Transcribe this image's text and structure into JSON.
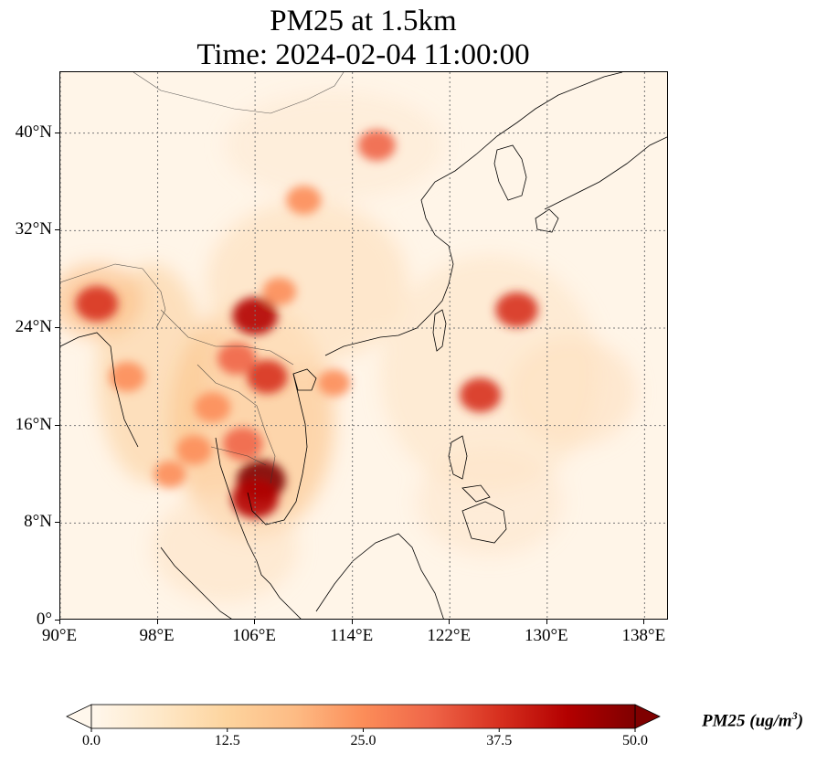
{
  "title": {
    "line1": "PM25 at 1.5km",
    "line2": "Time: 2024-02-04 11:00:00"
  },
  "map": {
    "projection": "PlateCarree",
    "extent": {
      "lon": [
        90,
        140
      ],
      "lat": [
        0,
        45
      ]
    },
    "gridlines": "dotted",
    "field": "PM25",
    "lon_ticks": [
      {
        "value": 90,
        "label": "90°E"
      },
      {
        "value": 98,
        "label": "98°E"
      },
      {
        "value": 106,
        "label": "106°E"
      },
      {
        "value": 114,
        "label": "114°E"
      },
      {
        "value": 122,
        "label": "122°E"
      },
      {
        "value": 130,
        "label": "130°E"
      },
      {
        "value": 138,
        "label": "138°E"
      }
    ],
    "lat_ticks": [
      {
        "value": 0,
        "label": "0°"
      },
      {
        "value": 8,
        "label": "8°N"
      },
      {
        "value": 16,
        "label": "16°N"
      },
      {
        "value": 24,
        "label": "24°N"
      },
      {
        "value": 32,
        "label": "32°N"
      },
      {
        "value": 40,
        "label": "40°N"
      }
    ],
    "hotspots": [
      {
        "lon": 106.5,
        "lat": 11.5,
        "level": 48
      },
      {
        "lon": 106.0,
        "lat": 10.0,
        "level": 45
      },
      {
        "lon": 106.0,
        "lat": 25.0,
        "level": 42
      },
      {
        "lon": 107.0,
        "lat": 20.0,
        "level": 35
      },
      {
        "lon": 105.0,
        "lat": 14.5,
        "level": 34
      },
      {
        "lon": 104.5,
        "lat": 21.5,
        "level": 32
      },
      {
        "lon": 102.5,
        "lat": 17.5,
        "level": 28
      },
      {
        "lon": 101.0,
        "lat": 14.0,
        "level": 27
      },
      {
        "lon": 93.0,
        "lat": 26.0,
        "level": 38
      },
      {
        "lon": 95.5,
        "lat": 20.0,
        "level": 28
      },
      {
        "lon": 124.5,
        "lat": 18.5,
        "level": 36
      },
      {
        "lon": 127.5,
        "lat": 25.5,
        "level": 38
      },
      {
        "lon": 116.0,
        "lat": 39.0,
        "level": 30
      },
      {
        "lon": 110.0,
        "lat": 34.5,
        "level": 26
      },
      {
        "lon": 108.0,
        "lat": 27.0,
        "level": 24
      },
      {
        "lon": 112.5,
        "lat": 19.5,
        "level": 22
      },
      {
        "lon": 99.0,
        "lat": 12.0,
        "level": 22
      }
    ]
  },
  "colorbar": {
    "cmap": "OrRd",
    "vmin": 0,
    "vmax": 50,
    "extend": "both",
    "tick_labels": [
      "0.0",
      "12.5",
      "25.0",
      "37.5",
      "50.0"
    ],
    "tick_values": [
      0,
      12.5,
      25,
      37.5,
      50
    ],
    "label_text": "PM25 (ug/m",
    "label_exponent": "3",
    "label_close": ")",
    "colors": [
      "#fff7ec",
      "#fee8c8",
      "#fdd49e",
      "#fdbb84",
      "#fc8d59",
      "#ef6548",
      "#d7301f",
      "#b30000",
      "#7f0000"
    ]
  }
}
